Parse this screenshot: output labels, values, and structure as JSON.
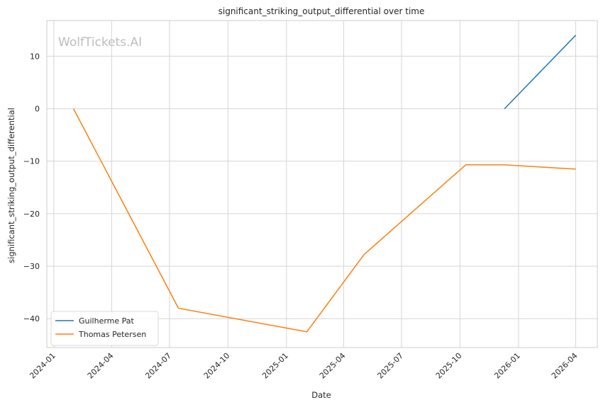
{
  "watermark": "WolfTickets.AI",
  "chart_data": {
    "type": "line",
    "title": "significant_striking_output_differential over time",
    "xlabel": "Date",
    "ylabel": "significant_striking_output_differential",
    "x_ticks": [
      "2024-01",
      "2024-04",
      "2024-07",
      "2024-10",
      "2025-01",
      "2025-04",
      "2025-07",
      "2025-10",
      "2026-01",
      "2026-04"
    ],
    "y_ticks": [
      10,
      0,
      -10,
      -20,
      -30,
      -40
    ],
    "xlim": [
      "2023-12-21",
      "2026-05-05"
    ],
    "ylim": [
      -45.5,
      16.8
    ],
    "grid": true,
    "legend_position": "lower-left",
    "series": [
      {
        "name": "Guilherme Pat",
        "color": "#1f77b4",
        "points": [
          {
            "x": "2025-12-10",
            "y": 0
          },
          {
            "x": "2026-04-01",
            "y": 14
          }
        ]
      },
      {
        "name": "Thomas Petersen",
        "color": "#ff7f0e",
        "points": [
          {
            "x": "2024-02-01",
            "y": 0
          },
          {
            "x": "2024-07-15",
            "y": -38
          },
          {
            "x": "2025-02-02",
            "y": -42.5
          },
          {
            "x": "2025-05-03",
            "y": -27.8
          },
          {
            "x": "2025-10-10",
            "y": -10.7
          },
          {
            "x": "2025-12-10",
            "y": -10.7
          },
          {
            "x": "2026-04-01",
            "y": -11.5
          }
        ]
      }
    ]
  }
}
